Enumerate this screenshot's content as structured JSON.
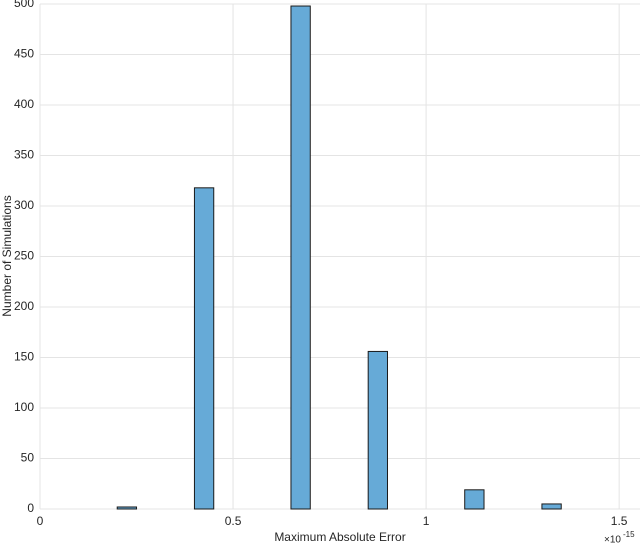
{
  "chart_data": {
    "type": "histogram",
    "xlabel": "Maximum Absolute Error",
    "ylabel": "Number of Simulations",
    "x_exponent_base": "×10",
    "x_exponent": "-15",
    "bins": [
      0.2,
      0.25,
      0.3,
      0.35,
      0.4,
      0.45,
      0.5,
      0.55,
      0.6,
      0.65,
      0.7,
      0.75,
      0.8,
      0.85,
      0.9,
      0.95,
      1.0,
      1.05,
      1.1,
      1.15,
      1.2,
      1.25,
      1.3,
      1.35
    ],
    "values": [
      2,
      0,
      0,
      0,
      318,
      0,
      0,
      0,
      0,
      498,
      0,
      0,
      0,
      156,
      0,
      0,
      0,
      0,
      19,
      0,
      0,
      0,
      5
    ],
    "color": "#66aad7",
    "xlim": [
      0,
      1.554
    ],
    "xticks": [
      0,
      0.5,
      1,
      1.5
    ],
    "ylim": [
      0,
      500
    ],
    "yticks": [
      0,
      50,
      100,
      150,
      200,
      250,
      300,
      350,
      400,
      450,
      500
    ],
    "grid": true
  }
}
